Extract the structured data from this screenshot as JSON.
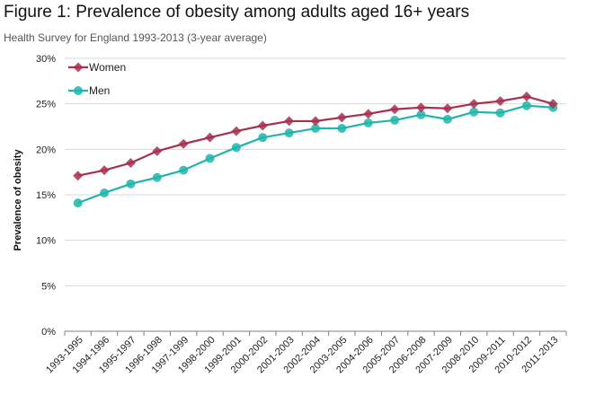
{
  "colors": {
    "women": "#a8304f",
    "men": "#1fb5ac",
    "grid": "#d9d9d9",
    "axis": "#7f7f7f"
  },
  "chart_data": {
    "type": "line",
    "title": "Figure 1: Prevalence of obesity among adults aged 16+ years",
    "subtitle": "Health Survey for England 1993-2013 (3-year average)",
    "xlabel": "",
    "ylabel": "Prevalence of obesity",
    "ylim": [
      0,
      30
    ],
    "yticks": [
      0,
      5,
      10,
      15,
      20,
      25,
      30
    ],
    "ytick_labels": [
      "0%",
      "5%",
      "10%",
      "15%",
      "20%",
      "25%",
      "30%"
    ],
    "categories": [
      "1993-1995",
      "1994-1996",
      "1995-1997",
      "1996-1998",
      "1997-1999",
      "1998-2000",
      "1999-2001",
      "2000-2002",
      "2001-2003",
      "2002-2004",
      "2003-2005",
      "2004-2006",
      "2005-2007",
      "2006-2008",
      "2007-2009",
      "2008-2010",
      "2009-2011",
      "2010-2012",
      "2011-2013"
    ],
    "legend_position": "top-left",
    "series": [
      {
        "name": "Women",
        "marker": "diamond",
        "values": [
          17.1,
          17.7,
          18.5,
          19.8,
          20.6,
          21.3,
          22.0,
          22.6,
          23.1,
          23.1,
          23.5,
          23.9,
          24.4,
          24.6,
          24.5,
          25.0,
          25.3,
          25.8,
          25.0
        ]
      },
      {
        "name": "Men",
        "marker": "circle",
        "values": [
          14.1,
          15.2,
          16.2,
          16.9,
          17.7,
          19.0,
          20.2,
          21.3,
          21.8,
          22.3,
          22.3,
          22.9,
          23.2,
          23.8,
          23.3,
          24.1,
          24.0,
          24.8,
          24.6
        ]
      }
    ]
  }
}
